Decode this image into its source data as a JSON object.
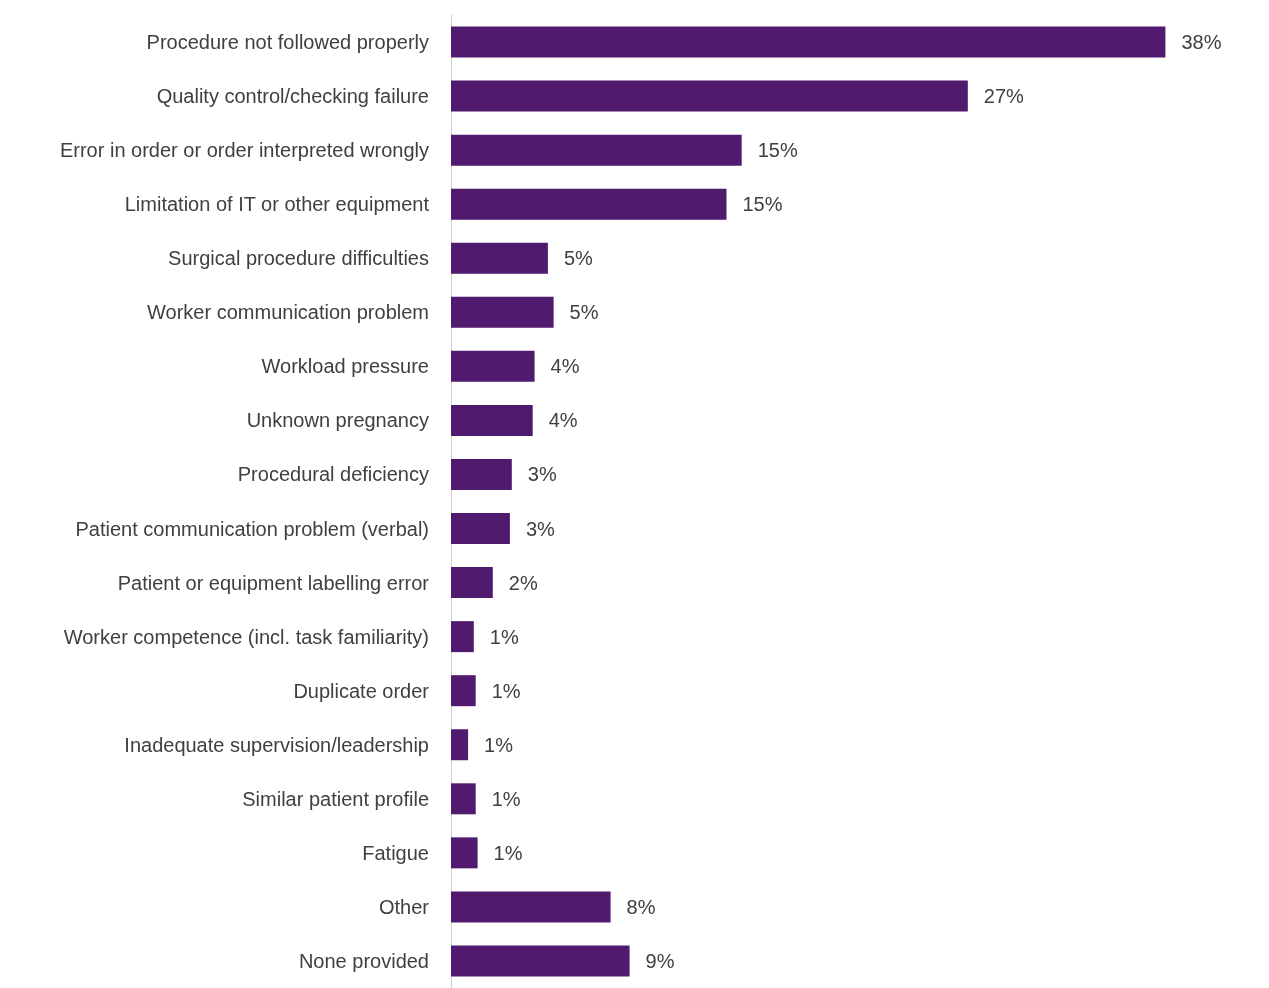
{
  "chart_data": {
    "type": "bar",
    "orientation": "horizontal",
    "categories": [
      "Procedure not followed properly",
      "Quality control/checking failure",
      "Error in order or order interpreted wrongly",
      "Limitation of IT or other equipment",
      "Surgical procedure difficulties",
      "Worker communication problem",
      "Workload pressure",
      "Unknown pregnancy",
      "Procedural deficiency",
      "Patient communication problem (verbal)",
      "Patient or equipment labelling error",
      "Worker competence (incl. task familiarity)",
      "Duplicate order",
      "Inadequate supervision/leadership",
      "Similar patient profile",
      "Fatigue",
      "Other",
      "None provided"
    ],
    "values": [
      37.6,
      27.2,
      15.3,
      14.5,
      5.1,
      5.4,
      4.4,
      4.3,
      3.2,
      3.1,
      2.2,
      1.2,
      1.3,
      0.9,
      1.3,
      1.4,
      8.4,
      9.4
    ],
    "value_labels": [
      "38%",
      "27%",
      "15%",
      "15%",
      "5%",
      "5%",
      "4%",
      "4%",
      "3%",
      "3%",
      "2%",
      "1%",
      "1%",
      "1%",
      "1%",
      "1%",
      "8%",
      "9%"
    ],
    "color": "#501b6f"
  }
}
